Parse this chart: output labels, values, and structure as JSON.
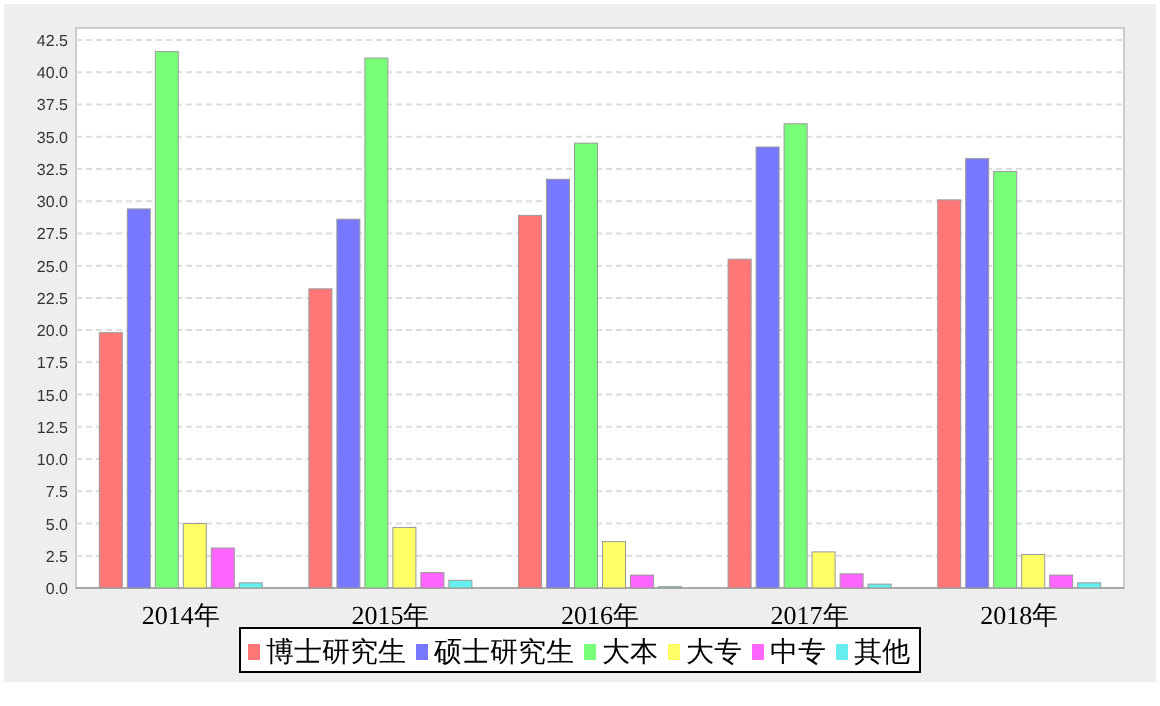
{
  "chart_data": {
    "type": "bar",
    "categories": [
      "2014年",
      "2015年",
      "2016年",
      "2017年",
      "2018年"
    ],
    "series": [
      {
        "name": "博士研究生",
        "color": "#ff7777",
        "values": [
          19.8,
          23.2,
          28.9,
          25.5,
          30.1
        ]
      },
      {
        "name": "硕士研究生",
        "color": "#7777ff",
        "values": [
          29.4,
          28.6,
          31.7,
          34.2,
          33.3
        ]
      },
      {
        "name": "大本",
        "color": "#77ff77",
        "values": [
          41.6,
          41.1,
          34.5,
          36.0,
          32.3
        ]
      },
      {
        "name": "大专",
        "color": "#ffff66",
        "values": [
          5.0,
          4.7,
          3.6,
          2.8,
          2.6
        ]
      },
      {
        "name": "中专",
        "color": "#ff66ff",
        "values": [
          3.1,
          1.2,
          1.0,
          1.1,
          1.0
        ]
      },
      {
        "name": "其他",
        "color": "#66eeee",
        "values": [
          0.4,
          0.6,
          0.1,
          0.3,
          0.4
        ]
      }
    ],
    "ylim": [
      0,
      42.5
    ],
    "yticks": [
      {
        "value": 0,
        "label": "0.0"
      },
      {
        "value": 2.5,
        "label": "2.5"
      },
      {
        "value": 5,
        "label": "5.0"
      },
      {
        "value": 7.5,
        "label": "7.5"
      },
      {
        "value": 10,
        "label": "10.0"
      },
      {
        "value": 12.5,
        "label": "12.5"
      },
      {
        "value": 15,
        "label": "15.0"
      },
      {
        "value": 17.5,
        "label": "17.5"
      },
      {
        "value": 20,
        "label": "20.0"
      },
      {
        "value": 22.5,
        "label": "22.5"
      },
      {
        "value": 25,
        "label": "25.0"
      },
      {
        "value": 27.5,
        "label": "27.5"
      },
      {
        "value": 30,
        "label": "30.0"
      },
      {
        "value": 32.5,
        "label": "32.5"
      },
      {
        "value": 35,
        "label": "35.0"
      },
      {
        "value": 37.5,
        "label": "37.5"
      },
      {
        "value": 40,
        "label": "40.0"
      },
      {
        "value": 42.5,
        "label": "42.5"
      }
    ],
    "grid": "y",
    "legend": "bottom"
  }
}
